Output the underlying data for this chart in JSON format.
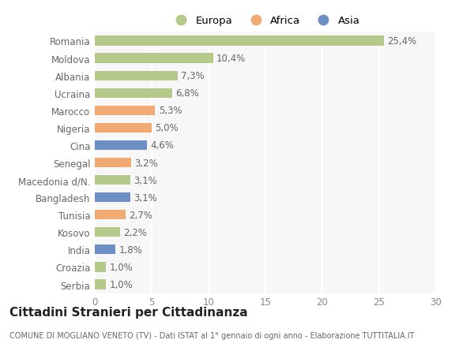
{
  "categories": [
    "Romania",
    "Moldova",
    "Albania",
    "Ucraina",
    "Marocco",
    "Nigeria",
    "Cina",
    "Senegal",
    "Macedonia d/N.",
    "Bangladesh",
    "Tunisia",
    "Kosovo",
    "India",
    "Croazia",
    "Serbia"
  ],
  "values": [
    25.4,
    10.4,
    7.3,
    6.8,
    5.3,
    5.0,
    4.6,
    3.2,
    3.1,
    3.1,
    2.7,
    2.2,
    1.8,
    1.0,
    1.0
  ],
  "labels": [
    "25,4%",
    "10,4%",
    "7,3%",
    "6,8%",
    "5,3%",
    "5,0%",
    "4,6%",
    "3,2%",
    "3,1%",
    "3,1%",
    "2,7%",
    "2,2%",
    "1,8%",
    "1,0%",
    "1,0%"
  ],
  "colors": [
    "#b5c98a",
    "#b5c98a",
    "#b5c98a",
    "#b5c98a",
    "#f0aa72",
    "#f0aa72",
    "#6e8fc4",
    "#f0aa72",
    "#b5c98a",
    "#6e8fc4",
    "#f0aa72",
    "#b5c98a",
    "#6e8fc4",
    "#b5c98a",
    "#b5c98a"
  ],
  "legend_items": [
    {
      "label": "Europa",
      "color": "#b5c98a"
    },
    {
      "label": "Africa",
      "color": "#f0aa72"
    },
    {
      "label": "Asia",
      "color": "#6e8fc4"
    }
  ],
  "title": "Cittadini Stranieri per Cittadinanza",
  "subtitle": "COMUNE DI MOGLIANO VENETO (TV) - Dati ISTAT al 1° gennaio di ogni anno - Elaborazione TUTTITALIA.IT",
  "xlim": [
    0,
    30
  ],
  "xticks": [
    0,
    5,
    10,
    15,
    20,
    25,
    30
  ],
  "background_color": "#ffffff",
  "plot_bg_color": "#f7f7f7",
  "grid_color": "#ffffff",
  "bar_height": 0.55,
  "label_fontsize": 8.5,
  "title_fontsize": 11,
  "subtitle_fontsize": 7,
  "tick_fontsize": 8.5,
  "legend_fontsize": 9.5
}
